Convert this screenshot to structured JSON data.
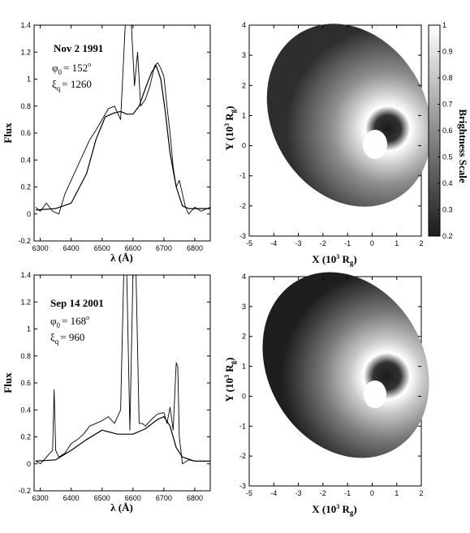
{
  "chart_data": [
    {
      "type": "line",
      "xlabel": "λ (Å)",
      "ylabel": "Flux",
      "xlim": [
        6280,
        6850
      ],
      "ylim": [
        -0.2,
        1.4
      ],
      "xticks": [
        6300,
        6400,
        6500,
        6600,
        6700,
        6800
      ],
      "yticks": [
        -0.2,
        0,
        0.2,
        0.4,
        0.6,
        0.8,
        1,
        1.2,
        1.4
      ],
      "annotation": {
        "date": "Nov 2 1991",
        "phi_label": "φ",
        "phi_sub": "0",
        "phi_value": "= 152",
        "phi_unit": "o",
        "xi_label": "ξ",
        "xi_sub": "q",
        "xi_value": "= 1260"
      },
      "series": [
        {
          "x": [
            6285,
            6350,
            6400,
            6450,
            6480,
            6510,
            6540,
            6560,
            6580,
            6600,
            6620,
            6640,
            6660,
            6675,
            6690,
            6705,
            6720,
            6740,
            6760,
            6780,
            6800,
            6850
          ],
          "values": [
            0.03,
            0.04,
            0.08,
            0.3,
            0.55,
            0.72,
            0.75,
            0.76,
            0.74,
            0.74,
            0.8,
            0.93,
            1.05,
            1.1,
            1.0,
            0.75,
            0.45,
            0.2,
            0.06,
            0.04,
            0.04,
            0.04
          ]
        },
        {
          "x": [
            6285,
            6300,
            6320,
            6340,
            6360,
            6380,
            6400,
            6420,
            6440,
            6460,
            6480,
            6500,
            6520,
            6540,
            6560,
            6575,
            6585,
            6595,
            6605,
            6615,
            6625,
            6640,
            6655,
            6670,
            6680,
            6690,
            6700,
            6710,
            6720,
            6730,
            6740,
            6750,
            6760,
            6770,
            6780,
            6800,
            6820,
            6850
          ],
          "values": [
            0.05,
            0.02,
            0.08,
            0.02,
            0.0,
            0.15,
            0.25,
            0.35,
            0.45,
            0.55,
            0.62,
            0.7,
            0.78,
            0.8,
            0.7,
            1.4,
            1.4,
            1.4,
            0.95,
            1.2,
            0.8,
            0.85,
            0.95,
            1.1,
            1.12,
            1.08,
            1.02,
            0.8,
            0.6,
            0.35,
            0.2,
            0.25,
            0.15,
            0.05,
            0.0,
            0.05,
            0.02,
            0.05
          ]
        }
      ]
    },
    {
      "type": "heatmap",
      "xlabel": "X (10³ Rg)",
      "ylabel": "Y (10³ Rg)",
      "xlim": [
        -5,
        2
      ],
      "ylim": [
        -3,
        4
      ],
      "xticks": [
        -5,
        -4,
        -3,
        -2,
        -1,
        0,
        1,
        2
      ],
      "yticks": [
        -3,
        -2,
        -1,
        0,
        1,
        2,
        3,
        4
      ],
      "colorbar": {
        "label": "Brightness Scale",
        "range": [
          0.2,
          1
        ],
        "ticks": [
          1,
          0.9,
          0.8,
          0.7,
          0.6,
          0.5,
          0.4,
          0.3,
          0.2
        ]
      }
    },
    {
      "type": "line",
      "xlabel": "λ (Å)",
      "ylabel": "Flux",
      "xlim": [
        6280,
        6850
      ],
      "ylim": [
        -0.2,
        1.4
      ],
      "xticks": [
        6300,
        6400,
        6500,
        6600,
        6700,
        6800
      ],
      "yticks": [
        -0.2,
        0,
        0.2,
        0.4,
        0.6,
        0.8,
        1,
        1.2,
        1.4
      ],
      "annotation": {
        "date": "Sep 14 2001",
        "phi_label": "φ",
        "phi_sub": "0",
        "phi_value": "= 168",
        "phi_unit": "o",
        "xi_label": "ξ",
        "xi_sub": "q",
        "xi_value": "= 960"
      },
      "series": [
        {
          "x": [
            6285,
            6350,
            6400,
            6450,
            6500,
            6550,
            6600,
            6640,
            6680,
            6700,
            6720,
            6740,
            6760,
            6800,
            6850
          ],
          "values": [
            0.02,
            0.03,
            0.1,
            0.18,
            0.25,
            0.22,
            0.22,
            0.26,
            0.33,
            0.35,
            0.28,
            0.12,
            0.05,
            0.02,
            0.02
          ]
        },
        {
          "x": [
            6285,
            6300,
            6320,
            6340,
            6345,
            6350,
            6360,
            6380,
            6400,
            6420,
            6440,
            6460,
            6480,
            6500,
            6520,
            6540,
            6560,
            6570,
            6580,
            6590,
            6600,
            6610,
            6620,
            6630,
            6640,
            6660,
            6680,
            6700,
            6710,
            6720,
            6730,
            6740,
            6745,
            6750,
            6760,
            6780,
            6800,
            6850
          ],
          "values": [
            0.02,
            0.0,
            0.05,
            0.1,
            0.55,
            0.1,
            0.05,
            0.08,
            0.15,
            0.18,
            0.22,
            0.28,
            0.3,
            0.32,
            0.35,
            0.3,
            0.4,
            1.4,
            1.4,
            0.25,
            1.4,
            1.4,
            0.3,
            0.3,
            0.28,
            0.33,
            0.37,
            0.38,
            0.3,
            0.42,
            0.25,
            0.75,
            0.72,
            0.2,
            0.0,
            0.03,
            0.02,
            0.02
          ]
        }
      ]
    },
    {
      "type": "heatmap",
      "xlabel": "X (10³ Rg)",
      "ylabel": "Y (10³ Rg)",
      "xlim": [
        -5,
        2
      ],
      "ylim": [
        -3,
        4
      ],
      "xticks": [
        -5,
        -4,
        -3,
        -2,
        -1,
        0,
        1,
        2
      ],
      "yticks": [
        -3,
        -2,
        -1,
        0,
        1,
        2,
        3,
        4
      ]
    }
  ]
}
